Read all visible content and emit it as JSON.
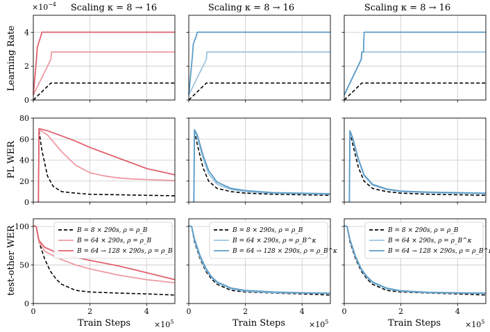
{
  "figure": {
    "panel_titles": [
      "Scaling κ = 8 → 16",
      "Scaling κ = 8 → 16",
      "Scaling κ = 8 → 16"
    ],
    "row_ylabels": [
      "Learning Rate",
      "PL WER",
      "test-other WER"
    ],
    "xlabel": "Train Steps",
    "x_multiplier": "×10",
    "x_multiplier_exp": "5",
    "lr_multiplier": "×10",
    "lr_multiplier_exp": "−4"
  },
  "colors": {
    "red_dark": "#e0606e",
    "red_light": "#ee9aa1",
    "blue_dark": "#5a9bc6",
    "blue_light": "#9cc4df",
    "black": "#000000"
  },
  "legends": [
    {
      "panel": 0,
      "entries": [
        {
          "label": "B = 8 × 290s, ρ = ρ_B",
          "style": "dashed",
          "color": "black"
        },
        {
          "label": "B = 64 × 290s, ρ = ρ_B",
          "style": "solid",
          "color": "red_light"
        },
        {
          "label": "B = 64 → 128 × 290s, ρ = ρ_B",
          "style": "solid",
          "color": "red_dark"
        }
      ]
    },
    {
      "panel": 1,
      "entries": [
        {
          "label": "B = 8 × 290s, ρ = ρ_B",
          "style": "dashed",
          "color": "black"
        },
        {
          "label": "B = 64 × 290s, ρ = ρ_B^κ",
          "style": "solid",
          "color": "blue_light"
        },
        {
          "label": "B = 64 → 128 × 290s, ρ = ρ_B^κ",
          "style": "solid",
          "color": "blue_dark"
        }
      ]
    },
    {
      "panel": 2,
      "entries": [
        {
          "label": "B = 8 × 290s, ρ = ρ_B",
          "style": "dashed",
          "color": "black"
        },
        {
          "label": "B = 64 × 290s, ρ = ρ_B^κ",
          "style": "solid",
          "color": "blue_light"
        },
        {
          "label": "B = 64 → 128 × 290s, ρ = ρ_B^κ",
          "style": "solid",
          "color": "blue_dark"
        }
      ]
    }
  ],
  "chart_data": [
    {
      "type": "line",
      "row": 0,
      "col": 0,
      "xlim": [
        0,
        5
      ],
      "ylim": [
        0,
        5
      ],
      "xticks": [
        0,
        2,
        4
      ],
      "yticks": [
        0,
        2,
        4
      ],
      "series": [
        {
          "name": "B = 8 × 290s, ρ = ρ_B",
          "color": "black",
          "dashed": true,
          "x": [
            0,
            0.62,
            5.0
          ],
          "y": [
            0,
            1.0,
            1.0
          ]
        },
        {
          "name": "B = 64 × 290s, ρ = ρ_B",
          "color": "red_light",
          "x": [
            0,
            0.62,
            0.64,
            5.0
          ],
          "y": [
            0.3,
            2.4,
            2.83,
            2.83
          ]
        },
        {
          "name": "B = 64 → 128 × 290s, ρ = ρ_B",
          "color": "red_dark",
          "x": [
            0,
            0.12,
            0.14,
            0.28,
            0.3,
            5.0
          ],
          "y": [
            0.3,
            2.6,
            3.1,
            3.85,
            4.0,
            4.0
          ]
        }
      ]
    },
    {
      "type": "line",
      "row": 0,
      "col": 1,
      "xlim": [
        0,
        5
      ],
      "ylim": [
        0,
        5
      ],
      "xticks": [
        0,
        2,
        4
      ],
      "yticks": [
        0,
        2,
        4
      ],
      "series": [
        {
          "name": "B = 8 × 290s, ρ = ρ_B",
          "color": "black",
          "dashed": true,
          "x": [
            0,
            0.62,
            5.0
          ],
          "y": [
            0,
            1.0,
            1.0
          ]
        },
        {
          "name": "B = 64 × 290s, ρ = ρ_B^κ",
          "color": "blue_light",
          "x": [
            0,
            0.62,
            0.64,
            5.0
          ],
          "y": [
            0.3,
            2.4,
            2.83,
            2.83
          ]
        },
        {
          "name": "B = 64 → 128 × 290s, ρ = ρ_B^κ",
          "color": "blue_dark",
          "x": [
            0,
            0.14,
            0.16,
            0.28,
            0.3,
            5.0
          ],
          "y": [
            0.3,
            2.8,
            3.3,
            3.85,
            4.0,
            4.0
          ]
        }
      ]
    },
    {
      "type": "line",
      "row": 0,
      "col": 2,
      "xlim": [
        0,
        5
      ],
      "ylim": [
        0,
        5
      ],
      "xticks": [
        0,
        2,
        4
      ],
      "yticks": [
        0,
        2,
        4
      ],
      "series": [
        {
          "name": "B = 8 × 290s, ρ = ρ_B",
          "color": "black",
          "dashed": true,
          "x": [
            0,
            0.62,
            5.0
          ],
          "y": [
            0,
            1.0,
            1.0
          ]
        },
        {
          "name": "B = 64 × 290s, ρ = ρ_B^κ",
          "color": "blue_light",
          "x": [
            0,
            0.6,
            0.62,
            5.0
          ],
          "y": [
            0.3,
            2.4,
            2.83,
            2.83
          ]
        },
        {
          "name": "B = 64 → 128 × 290s, ρ = ρ_B^κ",
          "color": "blue_dark",
          "x": [
            0,
            0.6,
            0.62,
            0.68,
            0.7,
            5.0
          ],
          "y": [
            0.3,
            2.4,
            2.83,
            2.83,
            4.0,
            4.0
          ]
        }
      ]
    },
    {
      "type": "line",
      "row": 1,
      "col": 0,
      "xlim": [
        0,
        5
      ],
      "ylim": [
        0,
        80
      ],
      "xticks": [
        0,
        2,
        4
      ],
      "yticks": [
        0,
        20,
        40,
        60,
        80
      ],
      "series": [
        {
          "name": "B = 8 × 290s, ρ = ρ_B",
          "color": "black",
          "dashed": true,
          "x": [
            0.2,
            0.3,
            0.5,
            0.7,
            1.0,
            1.5,
            2.0,
            3.0,
            4.0,
            5.0
          ],
          "y": [
            68,
            50,
            25,
            15,
            10,
            8.5,
            7.5,
            7,
            6.5,
            6
          ]
        },
        {
          "name": "B = 64 × 290s, ρ = ρ_B",
          "color": "red_light",
          "x": [
            0.18,
            0.2,
            0.5,
            1.0,
            1.5,
            2.0,
            2.5,
            3.0,
            3.5,
            4.0,
            4.5,
            5.0
          ],
          "y": [
            0,
            69,
            64,
            48,
            35,
            28,
            25,
            23,
            22,
            21.5,
            21,
            20.5
          ]
        },
        {
          "name": "B = 64 → 128 × 290s, ρ = ρ_B",
          "color": "red_dark",
          "x": [
            0.18,
            0.2,
            0.5,
            1.0,
            1.5,
            2.0,
            2.5,
            3.0,
            3.5,
            4.0,
            4.5,
            5.0
          ],
          "y": [
            0,
            70,
            68,
            63,
            58,
            52,
            47,
            42,
            37,
            32,
            29,
            26
          ]
        }
      ]
    },
    {
      "type": "line",
      "row": 1,
      "col": 1,
      "xlim": [
        0,
        5
      ],
      "ylim": [
        0,
        80
      ],
      "xticks": [
        0,
        2,
        4
      ],
      "yticks": [
        0,
        20,
        40,
        60,
        80
      ],
      "series": [
        {
          "name": "B = 8 × 290s, ρ = ρ_B",
          "color": "black",
          "dashed": true,
          "x": [
            0.2,
            0.3,
            0.5,
            0.7,
            1.0,
            1.5,
            2.0,
            3.0,
            4.0,
            5.0
          ],
          "y": [
            68,
            55,
            33,
            20,
            13,
            10,
            8.5,
            7.5,
            7,
            6.5
          ]
        },
        {
          "name": "B = 64 × 290s, ρ = ρ_B^κ",
          "color": "blue_light",
          "x": [
            0.18,
            0.2,
            0.3,
            0.5,
            0.7,
            1.0,
            1.5,
            2.0,
            3.0,
            4.0,
            5.0
          ],
          "y": [
            0,
            68,
            62,
            42,
            27,
            17,
            12,
            10,
            8.5,
            8,
            7.5
          ]
        },
        {
          "name": "B = 64 → 128 × 290s, ρ = ρ_B^κ",
          "color": "blue_dark",
          "x": [
            0.18,
            0.2,
            0.3,
            0.5,
            0.7,
            1.0,
            1.5,
            2.0,
            3.0,
            4.0,
            5.0
          ],
          "y": [
            0,
            69,
            64,
            45,
            30,
            19,
            13,
            11,
            9,
            8.5,
            8
          ]
        }
      ]
    },
    {
      "type": "line",
      "row": 1,
      "col": 2,
      "xlim": [
        0,
        5
      ],
      "ylim": [
        0,
        80
      ],
      "xticks": [
        0,
        2,
        4
      ],
      "yticks": [
        0,
        20,
        40,
        60,
        80
      ],
      "series": [
        {
          "name": "B = 8 × 290s, ρ = ρ_B",
          "color": "black",
          "dashed": true,
          "x": [
            0.2,
            0.3,
            0.5,
            0.7,
            1.0,
            1.5,
            2.0,
            3.0,
            4.0,
            5.0
          ],
          "y": [
            67,
            55,
            33,
            20,
            13,
            10,
            8.5,
            7.5,
            7,
            6.5
          ]
        },
        {
          "name": "B = 64 × 290s, ρ = ρ_B^κ",
          "color": "blue_light",
          "x": [
            0.18,
            0.2,
            0.3,
            0.5,
            0.7,
            1.0,
            1.5,
            2.0,
            3.0,
            4.0,
            5.0
          ],
          "y": [
            0,
            67,
            60,
            40,
            25,
            16,
            12,
            10,
            9,
            8.5,
            8
          ]
        },
        {
          "name": "B = 64 → 128 × 290s, ρ = ρ_B^κ",
          "color": "blue_dark",
          "x": [
            0.18,
            0.2,
            0.3,
            0.5,
            0.7,
            1.0,
            1.5,
            2.0,
            3.0,
            4.0,
            5.0
          ],
          "y": [
            0,
            68,
            61,
            41,
            26,
            17,
            12.5,
            10.5,
            9.5,
            9,
            8.5
          ]
        }
      ]
    },
    {
      "type": "line",
      "row": 2,
      "col": 0,
      "xlim": [
        0,
        5
      ],
      "ylim": [
        0,
        110
      ],
      "xticks": [
        0,
        2,
        4
      ],
      "yticks": [
        0,
        50,
        100
      ],
      "series": [
        {
          "name": "B = 8 × 290s, ρ = ρ_B",
          "color": "black",
          "dashed": true,
          "x": [
            0,
            0.1,
            0.2,
            0.4,
            0.6,
            0.8,
            1.0,
            1.5,
            2.0,
            3.0,
            4.0,
            5.0
          ],
          "y": [
            101,
            100,
            80,
            58,
            42,
            32,
            25,
            17,
            15,
            13.5,
            12.5,
            11
          ]
        },
        {
          "name": "B = 64 × 290s, ρ = ρ_B",
          "color": "red_light",
          "x": [
            0,
            0.1,
            0.2,
            0.4,
            0.7,
            1.0,
            1.5,
            2.0,
            3.0,
            4.0,
            5.0
          ],
          "y": [
            101,
            100,
            80,
            68,
            62,
            57,
            50,
            45,
            37,
            31,
            27
          ]
        },
        {
          "name": "B = 64 → 128 × 290s, ρ = ρ_B",
          "color": "red_dark",
          "x": [
            0,
            0.1,
            0.2,
            0.4,
            0.7,
            1.0,
            1.5,
            2.0,
            3.0,
            4.0,
            5.0
          ],
          "y": [
            101,
            100,
            82,
            73,
            68,
            64,
            60,
            56,
            49,
            40,
            31
          ]
        }
      ]
    },
    {
      "type": "line",
      "row": 2,
      "col": 1,
      "xlim": [
        0,
        5
      ],
      "ylim": [
        0,
        110
      ],
      "xticks": [
        0,
        2,
        4
      ],
      "yticks": [
        0,
        50,
        100
      ],
      "series": [
        {
          "name": "B = 8 × 290s, ρ = ρ_B",
          "color": "black",
          "dashed": true,
          "x": [
            0,
            0.1,
            0.2,
            0.4,
            0.6,
            0.8,
            1.0,
            1.5,
            2.0,
            3.0,
            4.0,
            5.0
          ],
          "y": [
            101,
            100,
            80,
            58,
            42,
            32,
            25,
            17,
            15,
            13.5,
            12.5,
            11
          ]
        },
        {
          "name": "B = 64 × 290s, ρ = ρ_B^κ",
          "color": "blue_light",
          "x": [
            0,
            0.1,
            0.2,
            0.4,
            0.6,
            0.8,
            1.0,
            1.5,
            2.0,
            3.0,
            4.0,
            5.0
          ],
          "y": [
            101,
            100,
            82,
            60,
            44,
            34,
            27,
            19,
            16,
            14,
            13.5,
            13
          ]
        },
        {
          "name": "B = 64 → 128 × 290s, ρ = ρ_B^κ",
          "color": "blue_dark",
          "x": [
            0,
            0.1,
            0.2,
            0.4,
            0.6,
            0.8,
            1.0,
            1.5,
            2.0,
            3.0,
            4.0,
            5.0
          ],
          "y": [
            101,
            100,
            84,
            62,
            46,
            35,
            28,
            20,
            17,
            15,
            14,
            13.5
          ]
        }
      ]
    },
    {
      "type": "line",
      "row": 2,
      "col": 2,
      "xlim": [
        0,
        5
      ],
      "ylim": [
        0,
        110
      ],
      "xticks": [
        0,
        2,
        4
      ],
      "yticks": [
        0,
        50,
        100
      ],
      "series": [
        {
          "name": "B = 8 × 290s, ρ = ρ_B",
          "color": "black",
          "dashed": true,
          "x": [
            0,
            0.1,
            0.2,
            0.4,
            0.6,
            0.8,
            1.0,
            1.5,
            2.0,
            3.0,
            4.0,
            5.0
          ],
          "y": [
            101,
            100,
            80,
            58,
            42,
            32,
            25,
            17,
            15,
            13.5,
            12.5,
            11
          ]
        },
        {
          "name": "B = 64 × 290s, ρ = ρ_B^κ",
          "color": "blue_light",
          "x": [
            0,
            0.1,
            0.2,
            0.4,
            0.6,
            0.8,
            1.0,
            1.5,
            2.0,
            3.0,
            4.0,
            5.0
          ],
          "y": [
            101,
            100,
            82,
            60,
            44,
            34,
            27,
            19,
            16,
            14,
            13.5,
            13
          ]
        },
        {
          "name": "B = 64 → 128 × 290s, ρ = ρ_B^κ",
          "color": "blue_dark",
          "x": [
            0,
            0.1,
            0.2,
            0.4,
            0.6,
            0.8,
            1.0,
            1.5,
            2.0,
            3.0,
            4.0,
            5.0
          ],
          "y": [
            101,
            100,
            83,
            61,
            45,
            35,
            28,
            20,
            16.5,
            14.5,
            14,
            13.5
          ]
        }
      ]
    }
  ]
}
